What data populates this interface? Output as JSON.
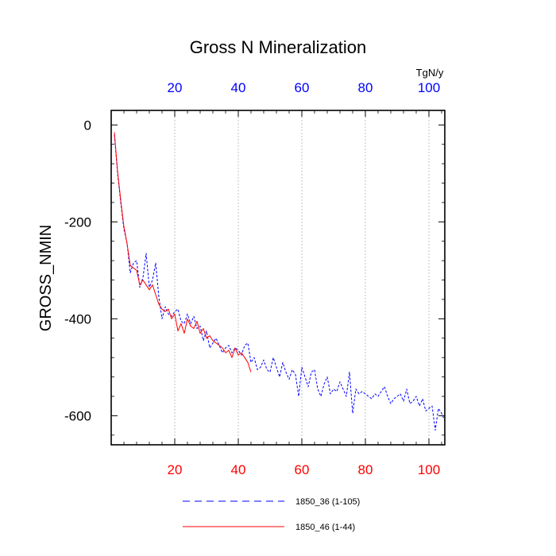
{
  "chart_data": {
    "type": "line",
    "title": "Gross N Mineralization",
    "ylabel": "GROSS_NMIN",
    "top_unit": "TgN/y",
    "xlim": [
      0,
      105
    ],
    "ylim": [
      -660,
      30
    ],
    "x_ticks": [
      20,
      40,
      60,
      80,
      100
    ],
    "y_ticks": [
      0,
      -200,
      -400,
      -600
    ],
    "x_tick_labels": [
      "20",
      "40",
      "60",
      "80",
      "100"
    ],
    "y_tick_labels": [
      "0",
      "-200",
      "-400",
      "-600"
    ],
    "grid": "vertical dotted",
    "legend_position": "bottom-center",
    "colors": {
      "bottom_axis": "#ff0000",
      "top_axis": "#0000ff",
      "series1": "#0000ff",
      "series2": "#ff0000"
    },
    "series": [
      {
        "name": "1850_36 (1-105)",
        "style": "dashed",
        "x": [
          1,
          2,
          3,
          4,
          5,
          6,
          7,
          8,
          9,
          10,
          11,
          12,
          13,
          14,
          15,
          16,
          17,
          18,
          19,
          20,
          21,
          22,
          23,
          24,
          25,
          26,
          27,
          28,
          29,
          30,
          31,
          32,
          33,
          34,
          35,
          36,
          37,
          38,
          39,
          40,
          41,
          42,
          43,
          44,
          45,
          46,
          47,
          48,
          49,
          50,
          51,
          52,
          53,
          54,
          55,
          56,
          57,
          58,
          59,
          60,
          61,
          62,
          63,
          64,
          65,
          66,
          67,
          68,
          69,
          70,
          71,
          72,
          73,
          74,
          75,
          76,
          77,
          78,
          79,
          80,
          81,
          82,
          83,
          84,
          85,
          86,
          87,
          88,
          89,
          90,
          91,
          92,
          93,
          94,
          95,
          96,
          97,
          98,
          99,
          100,
          101,
          102,
          103,
          104,
          105
        ],
        "y": [
          -20,
          -100,
          -160,
          -215,
          -245,
          -305,
          -285,
          -280,
          -335,
          -315,
          -265,
          -335,
          -320,
          -285,
          -355,
          -400,
          -375,
          -390,
          -395,
          -385,
          -380,
          -405,
          -410,
          -390,
          -410,
          -395,
          -420,
          -415,
          -445,
          -425,
          -460,
          -450,
          -440,
          -455,
          -470,
          -460,
          -455,
          -470,
          -460,
          -465,
          -475,
          -455,
          -450,
          -490,
          -480,
          -505,
          -500,
          -485,
          -505,
          -510,
          -480,
          -500,
          -520,
          -490,
          -510,
          -525,
          -505,
          -515,
          -560,
          -500,
          -520,
          -540,
          -510,
          -505,
          -545,
          -560,
          -535,
          -520,
          -555,
          -545,
          -550,
          -530,
          -545,
          -560,
          -510,
          -595,
          -545,
          -555,
          -550,
          -555,
          -560,
          -565,
          -555,
          -560,
          -550,
          -540,
          -560,
          -575,
          -565,
          -560,
          -555,
          -570,
          -545,
          -575,
          -570,
          -560,
          -580,
          -565,
          -590,
          -585,
          -580,
          -630,
          -585,
          -595,
          -610
        ]
      },
      {
        "name": "1850_46 (1-44)",
        "style": "solid",
        "x": [
          1,
          2,
          3,
          4,
          5,
          6,
          7,
          8,
          9,
          10,
          11,
          12,
          13,
          14,
          15,
          16,
          17,
          18,
          19,
          20,
          21,
          22,
          23,
          24,
          25,
          26,
          27,
          28,
          29,
          30,
          31,
          32,
          33,
          34,
          35,
          36,
          37,
          38,
          39,
          40,
          41,
          42,
          43,
          44
        ],
        "y": [
          -15,
          -95,
          -155,
          -210,
          -245,
          -290,
          -295,
          -300,
          -330,
          -320,
          -330,
          -340,
          -330,
          -350,
          -370,
          -380,
          -385,
          -380,
          -400,
          -390,
          -425,
          -410,
          -430,
          -400,
          -415,
          -420,
          -405,
          -430,
          -420,
          -440,
          -435,
          -445,
          -450,
          -455,
          -460,
          -470,
          -465,
          -480,
          -460,
          -475,
          -470,
          -480,
          -490,
          -510
        ]
      }
    ]
  }
}
